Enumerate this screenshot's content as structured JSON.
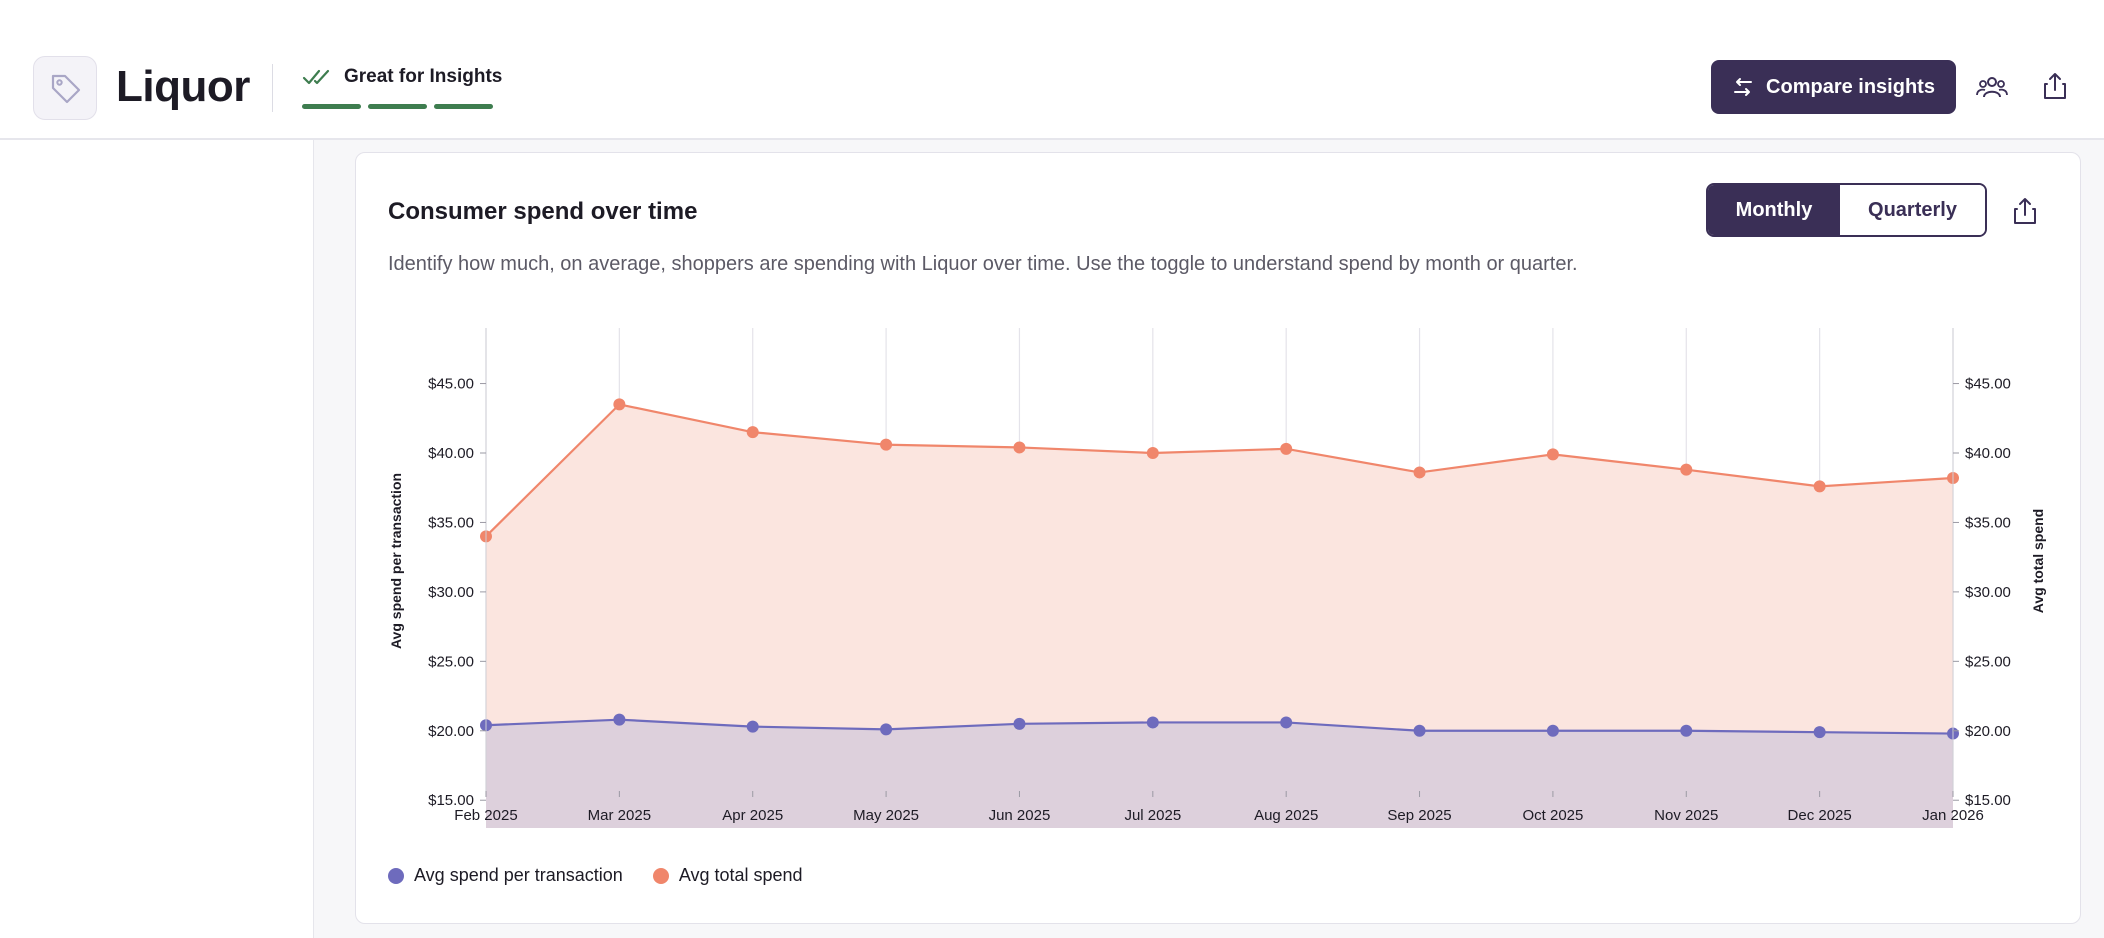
{
  "header": {
    "title": "Liquor",
    "quality_label": "Great for Insights",
    "compare_label": "Compare insights"
  },
  "card": {
    "title": "Consumer spend over time",
    "description": "Identify how much, on average, shoppers are spending with Liquor over time. Use the toggle to understand spend by month or quarter.",
    "toggle": {
      "monthly": "Monthly",
      "quarterly": "Quarterly",
      "selected": "Monthly"
    }
  },
  "colors": {
    "brand": "#3a2f56",
    "quality_green": "#3e7d4f",
    "series_transaction": "#6e6bbd",
    "series_total": "#f0866b",
    "area_total": "#fbe5df",
    "area_transaction": "#ddd0dc"
  },
  "chart_data": {
    "type": "area",
    "title": "Consumer spend over time",
    "categories": [
      "Feb 2025",
      "Mar 2025",
      "Apr 2025",
      "May 2025",
      "Jun 2025",
      "Jul 2025",
      "Aug 2025",
      "Sep 2025",
      "Oct 2025",
      "Nov 2025",
      "Dec 2025",
      "Jan 2026"
    ],
    "series": [
      {
        "name": "Avg spend per transaction",
        "axis": "left",
        "values": [
          20.4,
          20.8,
          20.3,
          20.1,
          20.5,
          20.6,
          20.6,
          20.0,
          20.0,
          20.0,
          19.9,
          19.8
        ]
      },
      {
        "name": "Avg total spend",
        "axis": "right",
        "values": [
          34.0,
          43.5,
          41.5,
          40.6,
          40.4,
          40.0,
          40.3,
          38.6,
          39.9,
          38.8,
          37.6,
          38.2
        ]
      }
    ],
    "ylabel": "Avg spend per transaction",
    "y2label": "Avg total spend",
    "ylim": [
      13.0,
      49.0
    ],
    "yticks": [
      "$15.00",
      "$20.00",
      "$25.00",
      "$30.00",
      "$35.00",
      "$40.00",
      "$45.00"
    ],
    "ytick_values": [
      15,
      20,
      25,
      30,
      35,
      40,
      45
    ],
    "grid": "vertical",
    "legend": "bottom-left"
  }
}
